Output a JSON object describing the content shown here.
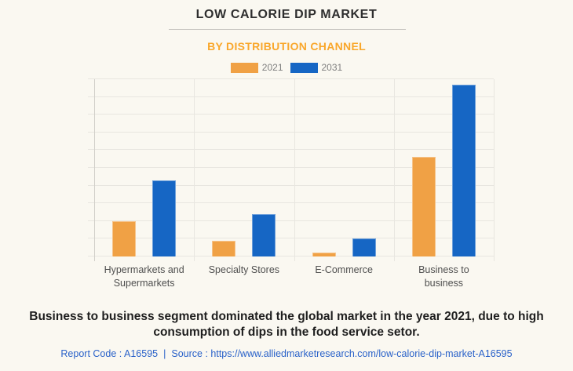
{
  "page": {
    "title": "LOW CALORIE DIP MARKET",
    "subtitle": "BY DISTRIBUTION CHANNEL",
    "footer_note": "Business to business segment dominated the global market in the year 2021, due to high consumption of dips in the food service setor.",
    "report_code": "Report Code : A16595",
    "separator": "|",
    "source_prefix": "Source :",
    "source_url": "https://www.alliedmarketresearch.com/low-calorie-dip-market-A16595"
  },
  "colors": {
    "background": "#FAF8F1",
    "title_text": "#2E2E2E",
    "subtitle_text": "#F9A72B",
    "series_2021": "#F0A145",
    "series_2031": "#1666C4",
    "gridline": "#E8E6E0",
    "axis_line": "#D2D0CA",
    "legend_text": "#7E7E7E",
    "category_text": "#4F4F4F",
    "footer_text": "#1E1E1E",
    "link_text": "#2A62C9"
  },
  "chart_data": {
    "type": "bar",
    "title": "LOW CALORIE DIP MARKET",
    "subtitle": "BY DISTRIBUTION CHANNEL",
    "categories": [
      "Hypermarkets and Supermarkets",
      "Specialty Stores",
      "E-Commerce",
      "Business to business"
    ],
    "series": [
      {
        "name": "2021",
        "color": "#F0A145",
        "values": [
          2.0,
          0.9,
          0.2,
          5.6
        ]
      },
      {
        "name": "2031",
        "color": "#1666C4",
        "values": [
          4.3,
          2.4,
          1.0,
          9.7
        ]
      }
    ],
    "xlabel": "",
    "ylabel": "",
    "ylim": [
      0,
      10
    ],
    "y_gridline_count": 10,
    "y_axis_labels_visible": false,
    "grid": true,
    "legend_position": "top"
  }
}
